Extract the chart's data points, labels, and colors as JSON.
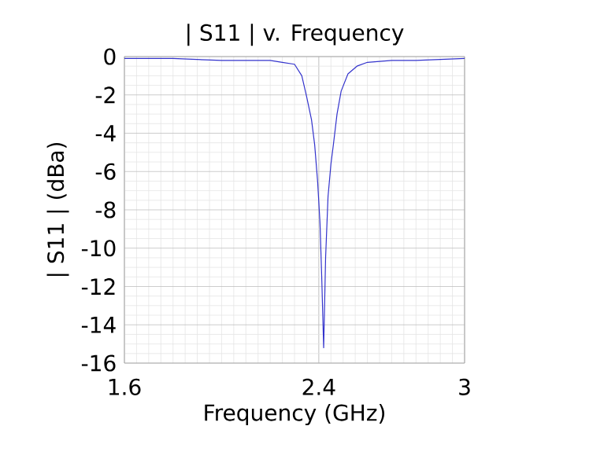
{
  "chart_data": {
    "type": "line",
    "title": "| S11 | v. Frequency",
    "xlabel": "Frequency (GHz)",
    "ylabel": "| S11 | (dBa)",
    "x": [
      1.6,
      1.8,
      2.0,
      2.1,
      2.2,
      2.25,
      2.3,
      2.33,
      2.35,
      2.37,
      2.383,
      2.395,
      2.405,
      2.412,
      2.42,
      2.428,
      2.438,
      2.45,
      2.46,
      2.475,
      2.492,
      2.52,
      2.557,
      2.6,
      2.7,
      2.8,
      3.0
    ],
    "series": [
      {
        "color": "#3333cc",
        "values": [
          -0.1,
          -0.1,
          -0.2,
          -0.2,
          -0.2,
          -0.3,
          -0.4,
          -1.0,
          -2.1,
          -3.3,
          -4.6,
          -6.5,
          -8.7,
          -11.5,
          -15.2,
          -10.5,
          -7.3,
          -5.6,
          -4.6,
          -3.0,
          -1.8,
          -0.9,
          -0.5,
          -0.3,
          -0.2,
          -0.2,
          -0.1
        ]
      }
    ],
    "xlim": [
      1.6,
      3
    ],
    "ylim": [
      -16,
      0
    ],
    "xticks": [
      1.6,
      2.4,
      3
    ],
    "yticks": [
      -16,
      -14,
      -12,
      -10,
      -8,
      -6,
      -4,
      -2,
      0
    ],
    "grid": true,
    "marker": "none",
    "line_style": "solid"
  }
}
